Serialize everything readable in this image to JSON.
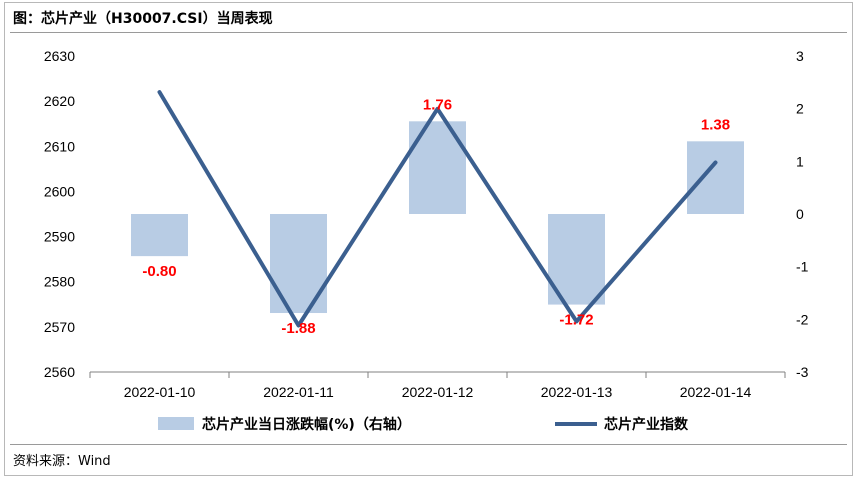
{
  "title": "图：芯片产业（H30007.CSI）当周表现",
  "source": "资料来源：Wind",
  "chart_data": {
    "type": "bar+line",
    "categories": [
      "2022-01-10",
      "2022-01-11",
      "2022-01-12",
      "2022-01-13",
      "2022-01-14"
    ],
    "left_axis": {
      "min": 2560,
      "max": 2630,
      "step": 10,
      "ticks": [
        "2630",
        "2620",
        "2610",
        "2600",
        "2590",
        "2580",
        "2570",
        "2560"
      ]
    },
    "right_axis": {
      "min": -3,
      "max": 3,
      "step": 1,
      "ticks": [
        "3",
        "2",
        "1",
        "0",
        "-1",
        "-2",
        "-3"
      ]
    },
    "series": [
      {
        "name": "芯片产业当日涨跌幅(%)（右轴）",
        "type": "bar",
        "axis": "right",
        "values": [
          -0.8,
          -1.88,
          1.76,
          -1.72,
          1.38
        ],
        "labels": [
          "-0.80",
          "-1.88",
          "1.76",
          "-1.72",
          "1.38"
        ],
        "color": "#b8cce4"
      },
      {
        "name": "芯片产业指数",
        "type": "line",
        "axis": "left",
        "values": [
          2622.0,
          2570.3,
          2618.3,
          2571.2,
          2606.4
        ],
        "color": "#3b5f8f"
      }
    ],
    "legend_position": "bottom",
    "grid": false
  }
}
